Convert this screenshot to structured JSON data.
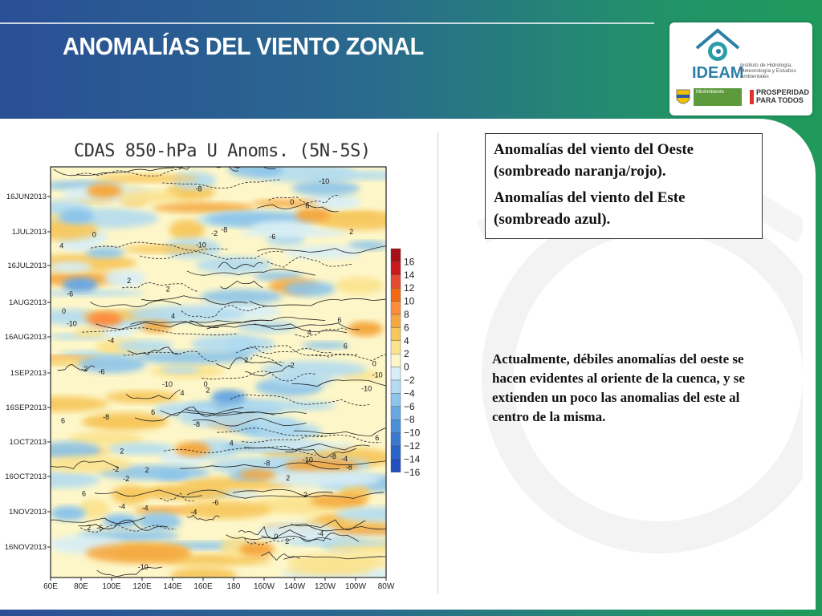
{
  "slide": {
    "title": "ANOMALÍAS DEL VIENTO ZONAL"
  },
  "logo": {
    "name": "IDEAM",
    "subtitle": "Instituto de Hidrología, Meteorología y Estudios Ambientales",
    "partner1": "MinAmbiente",
    "partner2": "PROSPERIDAD PARA TODOS",
    "colors": {
      "teal": "#2b7fa8",
      "green": "#5c9a3c",
      "red": "#e0312c"
    }
  },
  "chart_data": {
    "type": "heatmap",
    "title": "CDAS 850-hPa U Anoms. (5N-5S)",
    "y_ticks": [
      "16JUN2013",
      "1JUL2013",
      "16JUL2013",
      "1AUG2013",
      "16AUG2013",
      "1SEP2013",
      "16SEP2013",
      "1OCT2013",
      "16OCT2013",
      "1NOV2013",
      "16NOV2013"
    ],
    "x_ticks": [
      "60E",
      "80E",
      "100E",
      "120E",
      "140E",
      "160E",
      "180",
      "160W",
      "140W",
      "120W",
      "100W",
      "80W"
    ],
    "colorbar": {
      "levels": [
        "16",
        "14",
        "12",
        "10",
        "8",
        "6",
        "4",
        "2",
        "0",
        "−2",
        "−4",
        "−6",
        "−8",
        "−10",
        "−12",
        "−14",
        "−16"
      ],
      "colors": [
        "#a50f15",
        "#cb181d",
        "#e34a33",
        "#f16913",
        "#fd8d3c",
        "#f5a841",
        "#f7c65a",
        "#fbe28c",
        "#fdf6c8",
        "#d7eef7",
        "#b3dcf0",
        "#8cc4ea",
        "#6aa8e2",
        "#4a8fda",
        "#3a78d2",
        "#2a63ca",
        "#1f4fc0"
      ]
    },
    "contour_labels": [
      "-2",
      "0",
      "2",
      "4",
      "-4",
      "6",
      "-6",
      "-8",
      "-10"
    ]
  },
  "legend_box": {
    "line1": "Anomalías del viento del Oeste (sombreado naranja/rojo).",
    "line2": "Anomalías del viento del Este (sombreado azul)."
  },
  "note": "Actualmente, débiles anomalías del oeste se hacen evidentes al oriente de la cuenca, y se extienden un poco las anomalias del este al centro de la misma."
}
